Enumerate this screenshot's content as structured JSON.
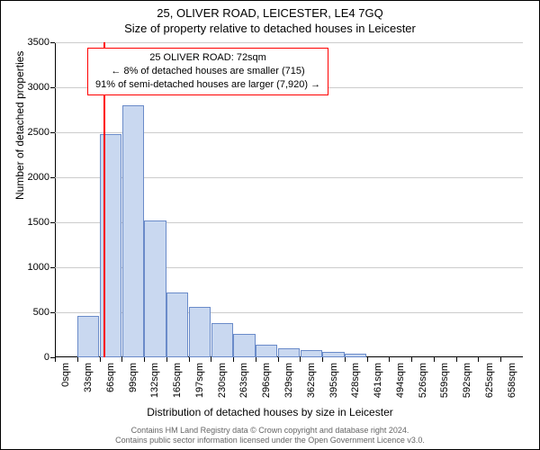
{
  "titles": {
    "main": "25, OLIVER ROAD, LEICESTER, LE4 7GQ",
    "sub": "Size of property relative to detached houses in Leicester"
  },
  "axes": {
    "ylabel": "Number of detached properties",
    "xlabel": "Distribution of detached houses by size in Leicester",
    "label_fontsize": 12,
    "tick_fontsize": 11
  },
  "chart": {
    "type": "histogram",
    "ymax": 3500,
    "ytick_step": 500,
    "yticks": [
      0,
      500,
      1000,
      1500,
      2000,
      2500,
      3000,
      3500
    ],
    "x_categories": [
      "0sqm",
      "33sqm",
      "66sqm",
      "99sqm",
      "132sqm",
      "165sqm",
      "197sqm",
      "230sqm",
      "263sqm",
      "296sqm",
      "329sqm",
      "362sqm",
      "395sqm",
      "428sqm",
      "461sqm",
      "494sqm",
      "526sqm",
      "559sqm",
      "592sqm",
      "625sqm",
      "658sqm"
    ],
    "values": [
      0,
      460,
      2480,
      2800,
      1520,
      720,
      560,
      380,
      260,
      140,
      100,
      80,
      60,
      40,
      0,
      0,
      0,
      0,
      0,
      0,
      0
    ],
    "bar_fill": "#c9d8f0",
    "bar_stroke": "#6a8bc9",
    "grid_color": "#cccccc",
    "background_color": "#ffffff",
    "marker": {
      "value_sqm": 72,
      "color": "#ff0000",
      "line_width": 2
    }
  },
  "annotation": {
    "line1": "25 OLIVER ROAD: 72sqm",
    "line2": "← 8% of detached houses are smaller (715)",
    "line3": "91% of semi-detached houses are larger (7,920) →",
    "border_color": "#ff0000",
    "bg_color": "#ffffff",
    "fontsize": 11
  },
  "footer": {
    "line1": "Contains HM Land Registry data © Crown copyright and database right 2024.",
    "line2": "Contains public sector information licensed under the Open Government Licence v3.0.",
    "color": "#666666",
    "fontsize": 9
  }
}
